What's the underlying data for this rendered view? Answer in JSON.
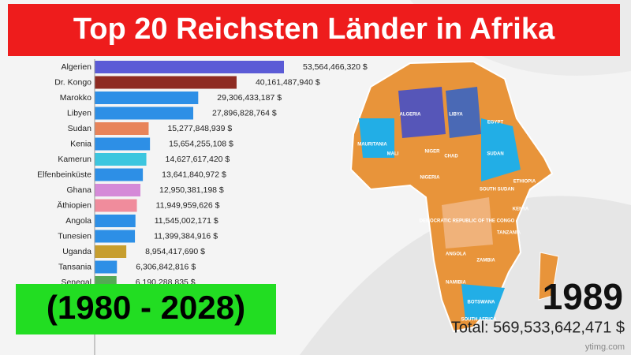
{
  "chart_data": {
    "type": "bar",
    "orientation": "horizontal",
    "title": "Top 20 Reichsten Länder in Afrika",
    "subtitle": "(1980 - 2028)",
    "year": "1989",
    "total_label": "Total: 569,533,642,471 $",
    "watermark": "ytimg.com",
    "categories": [
      "Algerien",
      "Dr. Kongo",
      "Marokko",
      "Libyen",
      "Sudan",
      "Kenia",
      "Kamerun",
      "Elfenbeinküste",
      "Ghana",
      "Äthiopien",
      "Angola",
      "Tunesien",
      "Uganda",
      "Tansania",
      "Senegal"
    ],
    "values": [
      53564466320,
      40161487940,
      29306433187,
      27896828764,
      15277848939,
      15654255108,
      14627617420,
      13641840972,
      12950381198,
      11949959626,
      11545002171,
      11399384916,
      8954417690,
      6306842816,
      6190288835
    ],
    "value_labels": [
      "53,564,466,320 $",
      "40,161,487,940 $",
      "29,306,433,187 $",
      "27,896,828,764 $",
      "15,277,848,939 $",
      "15,654,255,108 $",
      "14,627,617,420 $",
      "13,641,840,972 $",
      "12,950,381,198 $",
      "11,949,959,626 $",
      "11,545,002,171 $",
      "11,399,384,916 $",
      "8,954,417,690 $",
      "6,306,842,816 $",
      "6,190,288,835 $"
    ],
    "colors": [
      "#5b5bd6",
      "#8e2b22",
      "#2d8fe6",
      "#2d8fe6",
      "#e8845a",
      "#2d8fe6",
      "#3cc6df",
      "#2d8fe6",
      "#d58ad8",
      "#f08c9c",
      "#2d8fe6",
      "#2d8fe6",
      "#c79e2e",
      "#2d8fe6",
      "#55a955"
    ],
    "map_labels": [
      "ALGERIA",
      "LIBYA",
      "EGYPT",
      "MAURITANIA",
      "MALI",
      "NIGER",
      "CHAD",
      "SUDAN",
      "NIGERIA",
      "ETHIOPIA",
      "SOUTH SUDAN",
      "KENYA",
      "DEMOCRATIC REPUBLIC OF THE CONGO",
      "TANZANIA",
      "ANGOLA",
      "ZAMBIA",
      "NAMIBIA",
      "BOTSWANA",
      "SOUTH AFRICA"
    ]
  }
}
